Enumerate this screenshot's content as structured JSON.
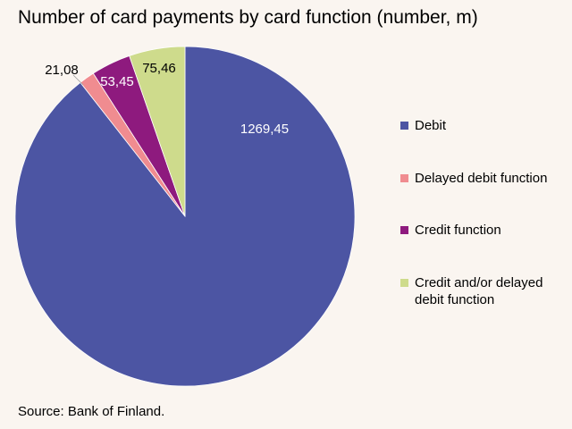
{
  "title": "Number of card payments by card function (number, m)",
  "source": "Source: Bank of Finland.",
  "chart_data": {
    "type": "pie",
    "title": "Number of card payments by card function (number, m)",
    "slices": [
      {
        "label": "Debit",
        "value": 1269.45,
        "value_text": "1269,45",
        "color": "#4c55a3",
        "label_color": "#ffffff"
      },
      {
        "label": "Delayed debit function",
        "value": 21.08,
        "value_text": "21,08",
        "color": "#f08c90",
        "label_color": "#000000"
      },
      {
        "label": "Credit function",
        "value": 53.45,
        "value_text": "53,45",
        "color": "#8e1a7e",
        "label_color": "#ffffff"
      },
      {
        "label": "Credit and/or delayed debit function",
        "value": 75.46,
        "value_text": "75,46",
        "color": "#cedb8c",
        "label_color": "#000000"
      }
    ],
    "legend_position": "right"
  }
}
